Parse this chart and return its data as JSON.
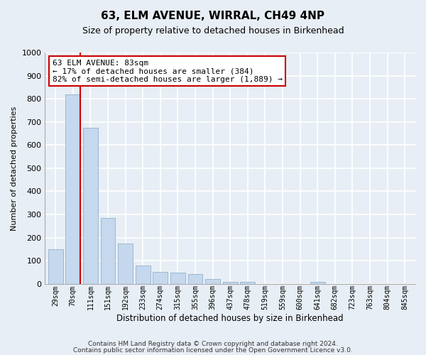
{
  "title": "63, ELM AVENUE, WIRRAL, CH49 4NP",
  "subtitle": "Size of property relative to detached houses in Birkenhead",
  "xlabel": "Distribution of detached houses by size in Birkenhead",
  "ylabel": "Number of detached properties",
  "bin_labels": [
    "29sqm",
    "70sqm",
    "111sqm",
    "151sqm",
    "192sqm",
    "233sqm",
    "274sqm",
    "315sqm",
    "355sqm",
    "396sqm",
    "437sqm",
    "478sqm",
    "519sqm",
    "559sqm",
    "600sqm",
    "641sqm",
    "682sqm",
    "723sqm",
    "763sqm",
    "804sqm",
    "845sqm"
  ],
  "bar_values": [
    150,
    820,
    675,
    285,
    175,
    78,
    52,
    50,
    42,
    20,
    10,
    10,
    0,
    0,
    0,
    10,
    0,
    0,
    0,
    0,
    0
  ],
  "bar_color": "#c5d8ed",
  "bar_edge_color": "#9ab8d4",
  "vline_x_index": 1,
  "vline_color": "#cc0000",
  "annotation_line1": "63 ELM AVENUE: 83sqm",
  "annotation_line2": "← 17% of detached houses are smaller (384)",
  "annotation_line3": "82% of semi-detached houses are larger (1,889) →",
  "annotation_box_color": "#ffffff",
  "annotation_box_edge": "#cc0000",
  "ylim": [
    0,
    1000
  ],
  "yticks": [
    0,
    100,
    200,
    300,
    400,
    500,
    600,
    700,
    800,
    900,
    1000
  ],
  "footnote1": "Contains HM Land Registry data © Crown copyright and database right 2024.",
  "footnote2": "Contains public sector information licensed under the Open Government Licence v3.0.",
  "bg_color": "#e8eef5",
  "plot_bg_color": "#e8eef5",
  "grid_color": "#ffffff",
  "title_fontsize": 11,
  "subtitle_fontsize": 9
}
